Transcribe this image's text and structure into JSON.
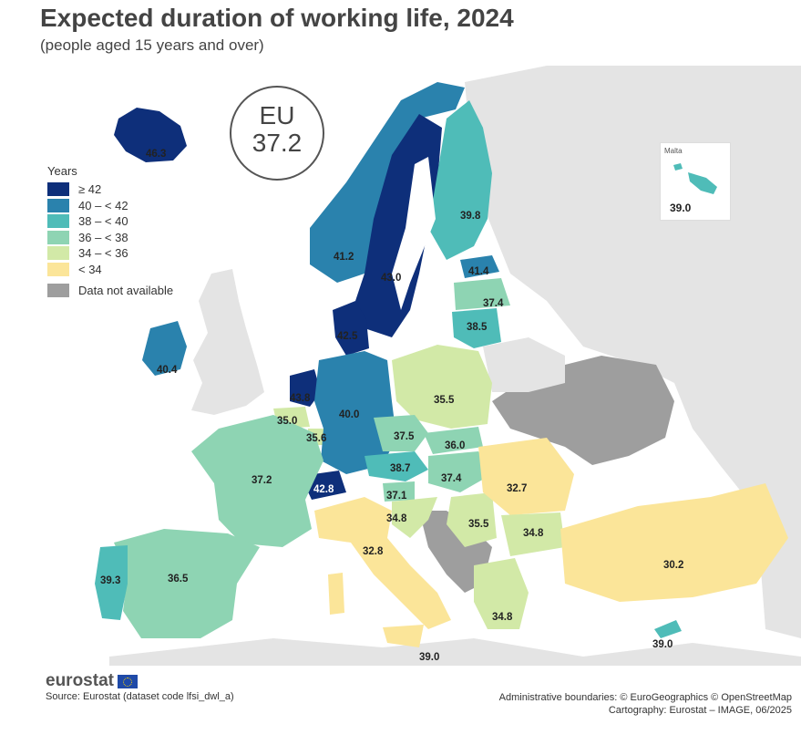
{
  "title": "Expected duration of working life, 2024",
  "subtitle": "(people aged 15 years and over)",
  "eu_badge": {
    "label": "EU",
    "value": "37.2"
  },
  "legend": {
    "title": "Years",
    "classes": [
      {
        "label": "≥ 42",
        "color": "#0e2f7a"
      },
      {
        "label": "40 – < 42",
        "color": "#2a82ad"
      },
      {
        "label": "38 – < 40",
        "color": "#4fbcb8"
      },
      {
        "label": "36 – < 38",
        "color": "#8ed4b3"
      },
      {
        "label": "34 – < 36",
        "color": "#d2e9a7"
      },
      {
        "label": "< 34",
        "color": "#fbe599"
      }
    ],
    "na": {
      "label": "Data not available",
      "color": "#9e9e9e"
    }
  },
  "inset": {
    "title": "Malta",
    "value": "39.0"
  },
  "chart_data": {
    "type": "choropleth",
    "title": "Expected duration of working life, 2024",
    "subtitle": "(people aged 15 years and over)",
    "unit": "Years",
    "eu_average": 37.2,
    "regions": [
      {
        "code": "IS",
        "value": 46.3
      },
      {
        "code": "SE",
        "value": 43.0
      },
      {
        "code": "NL",
        "value": 43.8
      },
      {
        "code": "CH",
        "value": 42.8
      },
      {
        "code": "DK",
        "value": 42.5
      },
      {
        "code": "EE",
        "value": 41.4
      },
      {
        "code": "NO",
        "value": 41.2
      },
      {
        "code": "IE",
        "value": 40.4
      },
      {
        "code": "DE",
        "value": 40.0
      },
      {
        "code": "FI",
        "value": 39.8
      },
      {
        "code": "PT",
        "value": 39.3
      },
      {
        "code": "MT",
        "value": 39.0
      },
      {
        "code": "CY",
        "value": 39.0
      },
      {
        "code": "AT",
        "value": 38.7
      },
      {
        "code": "LT",
        "value": 38.5
      },
      {
        "code": "CZ",
        "value": 37.5
      },
      {
        "code": "LV",
        "value": 37.4
      },
      {
        "code": "HU",
        "value": 37.4
      },
      {
        "code": "FR",
        "value": 37.2
      },
      {
        "code": "SI",
        "value": 37.1
      },
      {
        "code": "ES",
        "value": 36.5
      },
      {
        "code": "SK",
        "value": 36.0
      },
      {
        "code": "LU",
        "value": 35.6
      },
      {
        "code": "PL",
        "value": 35.5
      },
      {
        "code": "RS",
        "value": 35.5
      },
      {
        "code": "BE",
        "value": 35.0
      },
      {
        "code": "HR",
        "value": 34.8
      },
      {
        "code": "BG",
        "value": 34.8
      },
      {
        "code": "EL",
        "value": 34.8
      },
      {
        "code": "IT",
        "value": 32.8
      },
      {
        "code": "RO",
        "value": 32.7
      },
      {
        "code": "TR",
        "value": 30.2
      }
    ]
  },
  "footer": {
    "logo": "eurostat",
    "source": "Source: Eurostat (dataset code lfsi_dwl_a)",
    "boundaries": "Administrative boundaries: © EuroGeographics © OpenStreetMap",
    "cartography": "Cartography: Eurostat – IMAGE, 06/2025"
  }
}
